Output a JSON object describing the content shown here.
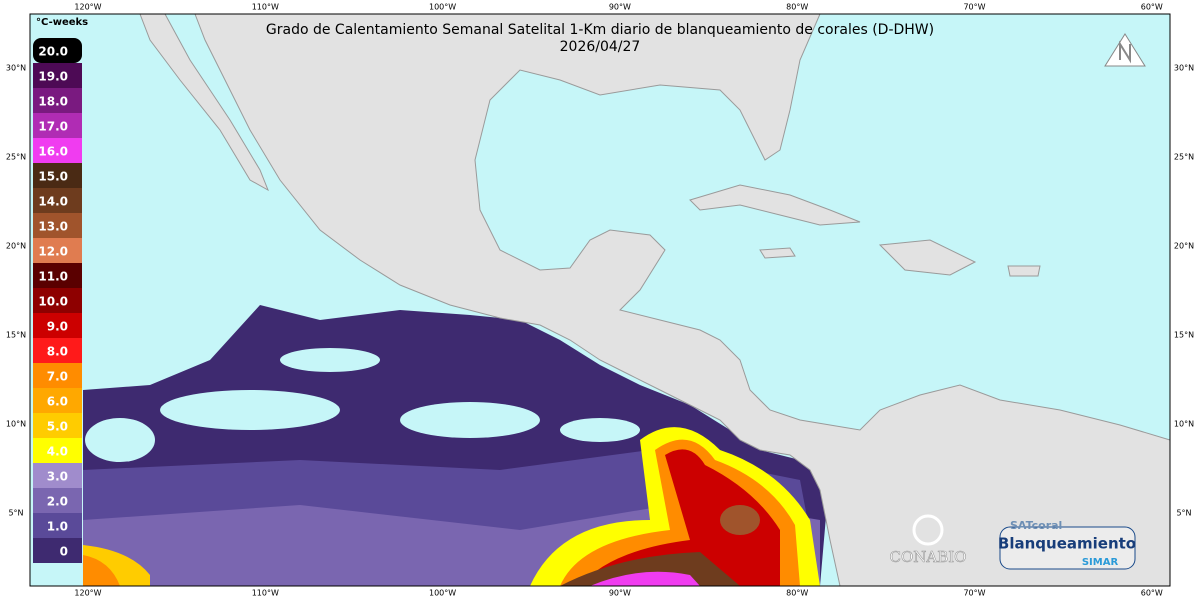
{
  "title": "Grado de Calentamiento Semanal Satelital 1-Km diario de blanqueamiento de corales (D-DHW)",
  "date": "2026/04/27",
  "legend": {
    "unit": "°C-weeks",
    "items": [
      {
        "label": "20.0",
        "color": "#000000"
      },
      {
        "label": "19.0",
        "color": "#4d0a55"
      },
      {
        "label": "18.0",
        "color": "#7a1a80"
      },
      {
        "label": "17.0",
        "color": "#b02cb4"
      },
      {
        "label": "16.0",
        "color": "#f03cf0"
      },
      {
        "label": "15.0",
        "color": "#4a2a14"
      },
      {
        "label": "14.0",
        "color": "#6e3c1e"
      },
      {
        "label": "13.0",
        "color": "#a0542c"
      },
      {
        "label": "12.0",
        "color": "#e07c50"
      },
      {
        "label": "11.0",
        "color": "#5a0000"
      },
      {
        "label": "10.0",
        "color": "#8e0000"
      },
      {
        "label": "9.0",
        "color": "#cc0000"
      },
      {
        "label": "8.0",
        "color": "#ff1a1a"
      },
      {
        "label": "7.0",
        "color": "#ff8c00"
      },
      {
        "label": "6.0",
        "color": "#ffa800"
      },
      {
        "label": "5.0",
        "color": "#ffcc00"
      },
      {
        "label": "4.0",
        "color": "#ffff00"
      },
      {
        "label": "3.0",
        "color": "#a08ccc"
      },
      {
        "label": "2.0",
        "color": "#7a66b0"
      },
      {
        "label": "1.0",
        "color": "#5a4a99"
      },
      {
        "label": "0",
        "color": "#3e2a70"
      }
    ]
  },
  "longitudes": [
    "120°W",
    "110°W",
    "100°W",
    "90°W",
    "80°W",
    "70°W",
    "60°W"
  ],
  "latitudes": [
    "30°N",
    "25°N",
    "20°N",
    "15°N",
    "10°N",
    "5°N"
  ],
  "logos": {
    "conabio": "CONABIO",
    "satcoral": "SATcoral",
    "blanqueamiento": "Blanqueamiento",
    "simar": "SIMAR"
  }
}
